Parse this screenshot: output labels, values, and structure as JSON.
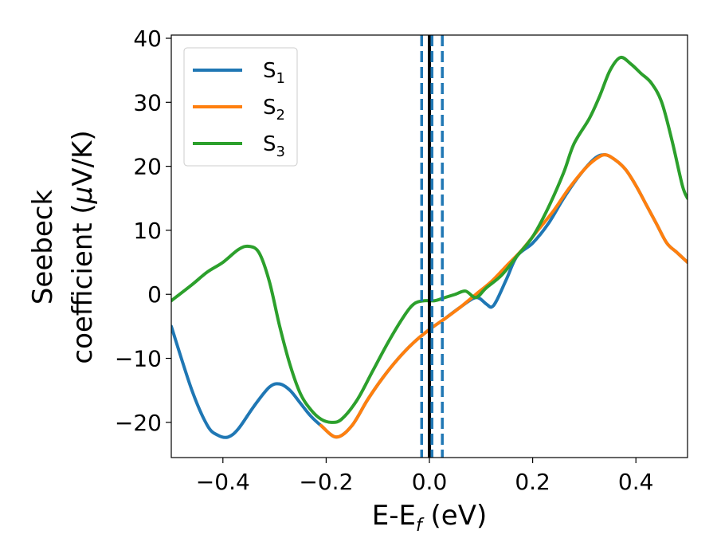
{
  "chart_data": {
    "type": "line",
    "xlabel": {
      "base": "E-E",
      "sub": "f",
      "rest": " (eV)"
    },
    "ylabel": {
      "line1": "Seebeck",
      "line2": "coefficient  (",
      "mu": "μ",
      "line2_end": "V/K)"
    },
    "xlim": [
      -0.5,
      0.5
    ],
    "ylim": [
      -25.5,
      40.5
    ],
    "xticks": [
      -0.4,
      -0.2,
      0.0,
      0.2,
      0.4
    ],
    "xtick_labels": [
      "−0.4",
      "−0.2",
      "0.0",
      "0.2",
      "0.4"
    ],
    "yticks": [
      -20,
      -10,
      0,
      10,
      20,
      30,
      40
    ],
    "ytick_labels": [
      "−20",
      "−10",
      "0",
      "10",
      "20",
      "30",
      "40"
    ],
    "grid": false,
    "legend_position": "top-left",
    "series": [
      {
        "name": "S",
        "sub": "1",
        "color": "#1f77b4",
        "x": [
          -0.5,
          -0.46,
          -0.43,
          -0.41,
          -0.39,
          -0.37,
          -0.34,
          -0.31,
          -0.29,
          -0.27,
          -0.25,
          -0.23,
          -0.21,
          -0.18,
          -0.15,
          -0.12,
          -0.09,
          -0.06,
          -0.03,
          0.0,
          0.03,
          0.06,
          0.09,
          0.11,
          0.12,
          0.13,
          0.15,
          0.17,
          0.2,
          0.23,
          0.26,
          0.29,
          0.32,
          0.34,
          0.36,
          0.38,
          0.4,
          0.42,
          0.44,
          0.46,
          0.48,
          0.5
        ],
        "y": [
          -5,
          -15,
          -20.5,
          -22,
          -22.3,
          -21,
          -17.5,
          -14.5,
          -14,
          -15,
          -17,
          -19,
          -20.5,
          -22.3,
          -20.5,
          -16.5,
          -13,
          -10,
          -7.5,
          -5.5,
          -3.8,
          -2,
          -0.5,
          -1.5,
          -2,
          -1,
          2.5,
          6,
          8,
          11,
          15,
          18.5,
          21.2,
          21.8,
          21,
          19.5,
          17,
          14,
          11,
          8,
          6.5,
          5
        ]
      },
      {
        "name": "S",
        "sub": "2",
        "color": "#ff7f0e",
        "x": [
          -0.21,
          -0.18,
          -0.15,
          -0.12,
          -0.09,
          -0.06,
          -0.03,
          0.0,
          0.03,
          0.06,
          0.09,
          0.12,
          0.15,
          0.18,
          0.21,
          0.24,
          0.27,
          0.3,
          0.32,
          0.34,
          0.36,
          0.38,
          0.4,
          0.42,
          0.44,
          0.46,
          0.48,
          0.5
        ],
        "y": [
          -20.5,
          -22.3,
          -20.5,
          -16.5,
          -13,
          -10,
          -7.5,
          -5.5,
          -3.8,
          -2,
          0,
          2,
          4.5,
          7,
          10,
          13,
          16.5,
          19.5,
          21,
          21.8,
          21,
          19.5,
          17,
          14,
          11,
          8,
          6.5,
          5
        ]
      },
      {
        "name": "S",
        "sub": "3",
        "color": "#2ca02c",
        "x": [
          -0.5,
          -0.46,
          -0.43,
          -0.4,
          -0.37,
          -0.35,
          -0.33,
          -0.31,
          -0.29,
          -0.27,
          -0.25,
          -0.23,
          -0.21,
          -0.19,
          -0.17,
          -0.14,
          -0.11,
          -0.08,
          -0.05,
          -0.03,
          -0.01,
          0.01,
          0.03,
          0.05,
          0.07,
          0.09,
          0.11,
          0.14,
          0.17,
          0.2,
          0.23,
          0.26,
          0.28,
          0.31,
          0.33,
          0.35,
          0.37,
          0.39,
          0.41,
          0.43,
          0.45,
          0.47,
          0.49,
          0.5
        ],
        "y": [
          -1,
          1.5,
          3.5,
          5,
          7,
          7.5,
          6.5,
          2,
          -5,
          -11,
          -15.5,
          -18,
          -19.5,
          -20,
          -19.5,
          -16.5,
          -12,
          -7.5,
          -3.5,
          -1.5,
          -1,
          -1,
          -0.5,
          0,
          0.5,
          -0.5,
          1,
          3,
          6,
          9,
          13.5,
          19,
          23.5,
          27.5,
          31,
          35,
          37,
          36,
          34.5,
          33,
          30,
          24,
          17,
          15
        ]
      }
    ],
    "vlines": [
      {
        "x": 0.0,
        "color": "#000000",
        "style": "solid"
      },
      {
        "x": -0.015,
        "color": "#1f77b4",
        "style": "dashed"
      },
      {
        "x": 0.025,
        "color": "#1f77b4",
        "style": "dashed"
      },
      {
        "x": 0.005,
        "color": "#1f77b4",
        "style": "dashed"
      }
    ]
  }
}
